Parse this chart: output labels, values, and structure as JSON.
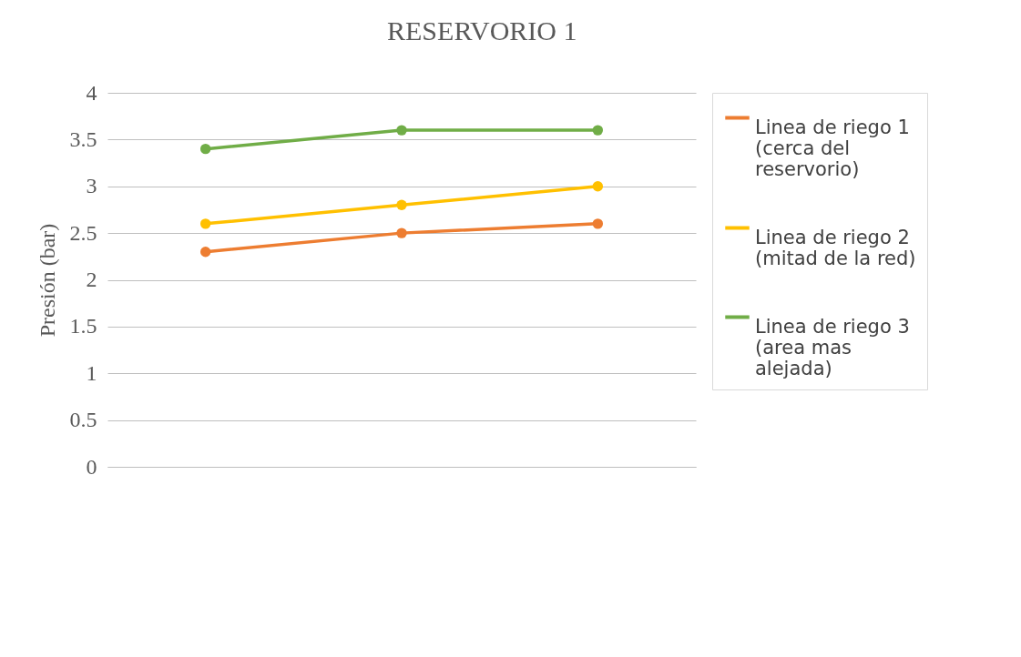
{
  "chart_data": {
    "type": "line",
    "title": "RESERVORIO 1",
    "ylabel": "Presión (bar)",
    "categories": [
      null,
      null,
      null
    ],
    "series": [
      {
        "name": "Linea de riego 1 (cerca del reservorio)",
        "color": "#ed7d31",
        "values": [
          2.3,
          2.5,
          2.6
        ]
      },
      {
        "name": "Linea de riego 2 (mitad de la red)",
        "color": "#ffc000",
        "values": [
          2.6,
          2.8,
          3.0
        ]
      },
      {
        "name": "Linea de riego 3 (area mas alejada)",
        "color": "#70ad47",
        "values": [
          3.4,
          3.6,
          3.6
        ]
      }
    ],
    "ylim": [
      0,
      4
    ],
    "yticks": [
      0,
      0.5,
      1,
      1.5,
      2,
      2.5,
      3,
      3.5,
      4
    ],
    "grid": "y",
    "legend": "right",
    "marker": "circle",
    "line_style": "solid",
    "tick_labels": "y"
  }
}
